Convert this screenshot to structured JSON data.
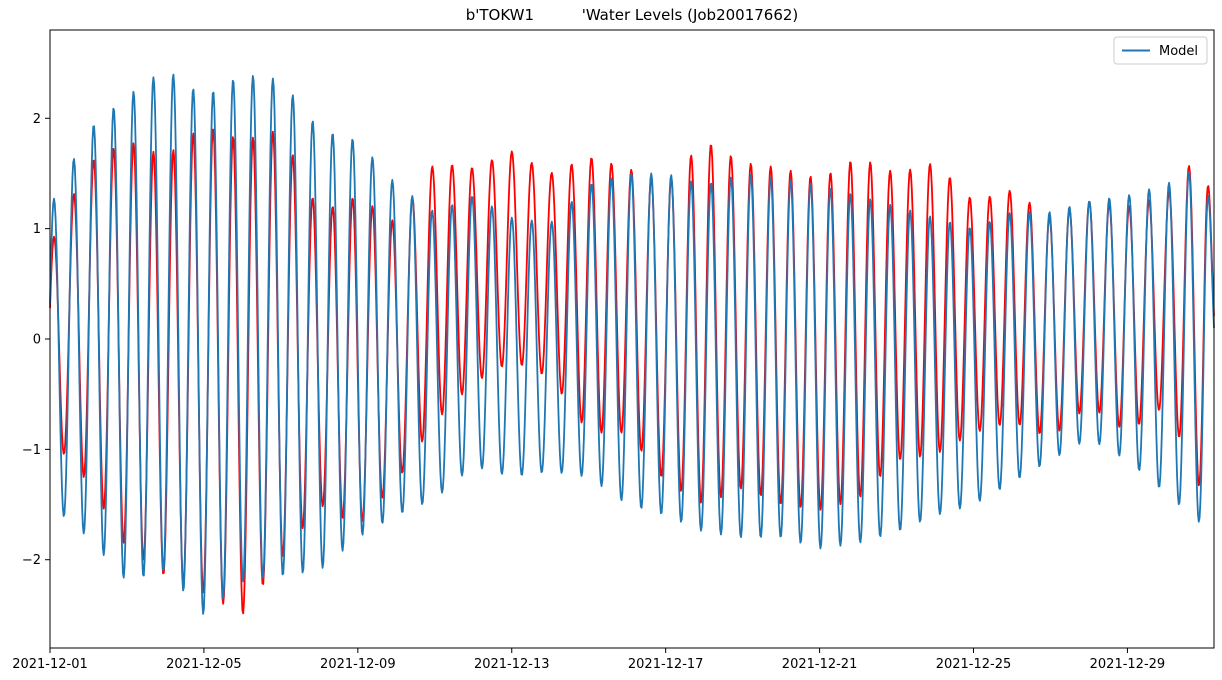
{
  "chart_data": {
    "type": "line",
    "title": "b'TOKW1          'Water Levels (Job20017662)",
    "xlabel": "",
    "ylabel": "",
    "x_range": [
      "2021-12-01",
      "2021-12-31T06:00"
    ],
    "ylim": [
      -2.8,
      2.8
    ],
    "x_tick_labels": [
      "2021-12-01",
      "2021-12-05",
      "2021-12-09",
      "2021-12-13",
      "2021-12-17",
      "2021-12-21",
      "2021-12-25",
      "2021-12-29"
    ],
    "y_tick_labels": [
      "−2",
      "−1",
      "0",
      "1",
      "2"
    ],
    "y_ticks": [
      -2,
      -1,
      0,
      1,
      2
    ],
    "grid": false,
    "legend": {
      "placement": "top-right",
      "entries": [
        "Model"
      ]
    },
    "series": [
      {
        "name": "Model",
        "color": "#1f77b4",
        "envelope": {
          "days": [
            0,
            1,
            2,
            3,
            4,
            5,
            6,
            7,
            8,
            9,
            10,
            11,
            12,
            13,
            14,
            15,
            16,
            17,
            18,
            19,
            20,
            21,
            22,
            23,
            24,
            25,
            26,
            27,
            28,
            29,
            30,
            30.25
          ],
          "highs": [
            1.2,
            1.9,
            2.2,
            2.45,
            2.2,
            2.4,
            2.35,
            1.9,
            1.8,
            1.4,
            1.15,
            1.3,
            1.1,
            1.05,
            1.4,
            1.5,
            1.5,
            1.4,
            1.5,
            1.45,
            1.4,
            1.3,
            1.2,
            1.1,
            1.0,
            1.15,
            1.15,
            1.25,
            1.3,
            1.4,
            1.6,
            0.9
          ],
          "lows": [
            -1.5,
            -1.8,
            -2.2,
            -2.1,
            -2.5,
            -2.2,
            -2.15,
            -2.1,
            -1.8,
            -1.6,
            -1.45,
            -1.15,
            -1.25,
            -1.2,
            -1.25,
            -1.5,
            -1.6,
            -1.75,
            -1.8,
            -1.8,
            -1.9,
            -1.85,
            -1.75,
            -1.6,
            -1.5,
            -1.3,
            -1.1,
            -0.9,
            -1.1,
            -1.4,
            -1.7,
            -0.6
          ],
          "period_days": 0.5175
        }
      },
      {
        "name": "",
        "color": "#ff0000",
        "envelope": {
          "days": [
            0,
            1,
            2,
            3,
            4,
            5,
            6,
            7,
            8,
            9,
            10,
            11,
            12,
            13,
            14,
            15,
            16,
            17,
            18,
            19,
            20,
            21,
            22,
            23,
            24,
            25,
            26,
            27,
            28,
            29,
            30,
            30.25
          ],
          "highs": [
            0.85,
            1.6,
            1.8,
            1.65,
            1.95,
            1.8,
            1.9,
            1.15,
            1.3,
            1.05,
            1.6,
            1.55,
            1.7,
            1.5,
            1.65,
            1.55,
            1.4,
            1.8,
            1.6,
            1.55,
            1.45,
            1.65,
            1.5,
            1.6,
            1.25,
            1.35,
            1.1,
            1.25,
            1.2,
            1.3,
            1.75,
            0.9
          ],
          "lows": [
            -0.9,
            -1.3,
            -1.9,
            -2.15,
            -2.3,
            -2.5,
            -2.0,
            -1.5,
            -1.7,
            -1.3,
            -0.75,
            -0.4,
            -0.2,
            -0.35,
            -0.85,
            -0.85,
            -1.3,
            -1.5,
            -1.35,
            -1.5,
            -1.55,
            -1.45,
            -1.1,
            -1.05,
            -0.85,
            -0.75,
            -0.9,
            -0.6,
            -0.85,
            -0.6,
            -1.45,
            -0.4
          ],
          "period_days": 0.5175
        }
      }
    ]
  }
}
